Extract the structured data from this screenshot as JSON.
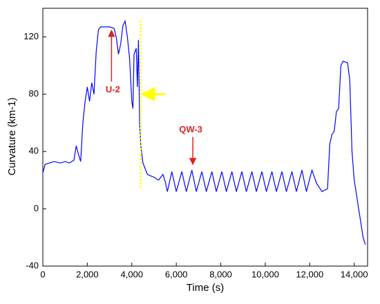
{
  "chart_data": {
    "type": "line",
    "xlabel": "Time (s)",
    "ylabel": "Curvature (km-1)",
    "x": [
      0,
      100,
      300,
      500,
      800,
      1000,
      1200,
      1400,
      1500,
      1600,
      1700,
      1800,
      1900,
      2000,
      2100,
      2200,
      2300,
      2400,
      2500,
      2600,
      2800,
      3000,
      3200,
      3300,
      3400,
      3500,
      3600,
      3700,
      3800,
      3900,
      4000,
      4050,
      4100,
      4200,
      4250,
      4300,
      4350,
      4400,
      4500,
      4700,
      5000,
      5200,
      5400,
      5500,
      5600,
      5800,
      6000,
      6250,
      6450,
      6700,
      6900,
      7150,
      7350,
      7600,
      7800,
      8050,
      8250,
      8500,
      8700,
      8950,
      9150,
      9400,
      9600,
      9850,
      10050,
      10300,
      10500,
      10750,
      10950,
      11200,
      11400,
      11650,
      11850,
      12100,
      12300,
      12550,
      12800,
      12900,
      13000,
      13100,
      13200,
      13300,
      13400,
      13500,
      13700,
      13800,
      13900,
      14000,
      14200,
      14400,
      14500
    ],
    "series": [
      {
        "color": "#0000ff",
        "values": [
          25,
          31,
          32,
          33,
          32,
          33,
          32,
          34,
          44,
          38,
          33,
          60,
          75,
          85,
          75,
          88,
          80,
          110,
          125,
          127,
          127,
          127,
          126,
          120,
          108,
          115,
          128,
          131,
          120,
          105,
          75,
          70,
          108,
          112,
          85,
          118,
          60,
          45,
          32,
          24,
          22,
          20,
          24,
          19,
          12,
          26,
          12,
          26,
          12,
          27,
          12,
          26,
          12,
          26,
          12,
          26,
          12,
          26,
          12,
          26,
          12,
          26,
          12,
          26,
          12,
          26,
          12,
          26,
          12,
          26,
          12,
          27,
          12,
          27,
          18,
          12,
          14,
          45,
          52,
          54,
          68,
          70,
          100,
          103,
          102,
          90,
          40,
          20,
          0,
          -20,
          -25
        ]
      }
    ],
    "xlim": [
      0,
      14600
    ],
    "ylim": [
      -40,
      140
    ],
    "xticks": [
      0,
      {
        "value": 2000,
        "label": "2,000"
      },
      {
        "value": 4000,
        "label": "4,000"
      },
      {
        "value": 6000,
        "label": "6,000"
      },
      {
        "value": 8000,
        "label": "8,000"
      },
      {
        "value": 10000,
        "label": "10,000"
      },
      {
        "value": 12000,
        "label": "12,000"
      },
      {
        "value": 14000,
        "label": "14,000"
      }
    ],
    "yticks": [
      -40,
      0,
      40,
      80,
      120
    ],
    "annotations": [
      {
        "text": "U-2",
        "x": 3150,
        "y": 83,
        "color": "#e02020"
      },
      {
        "text": "QW-3",
        "x": 6650,
        "y": 55,
        "color": "#e02020"
      }
    ],
    "reference_line": {
      "x": 4400,
      "color": "#ffff00"
    }
  }
}
